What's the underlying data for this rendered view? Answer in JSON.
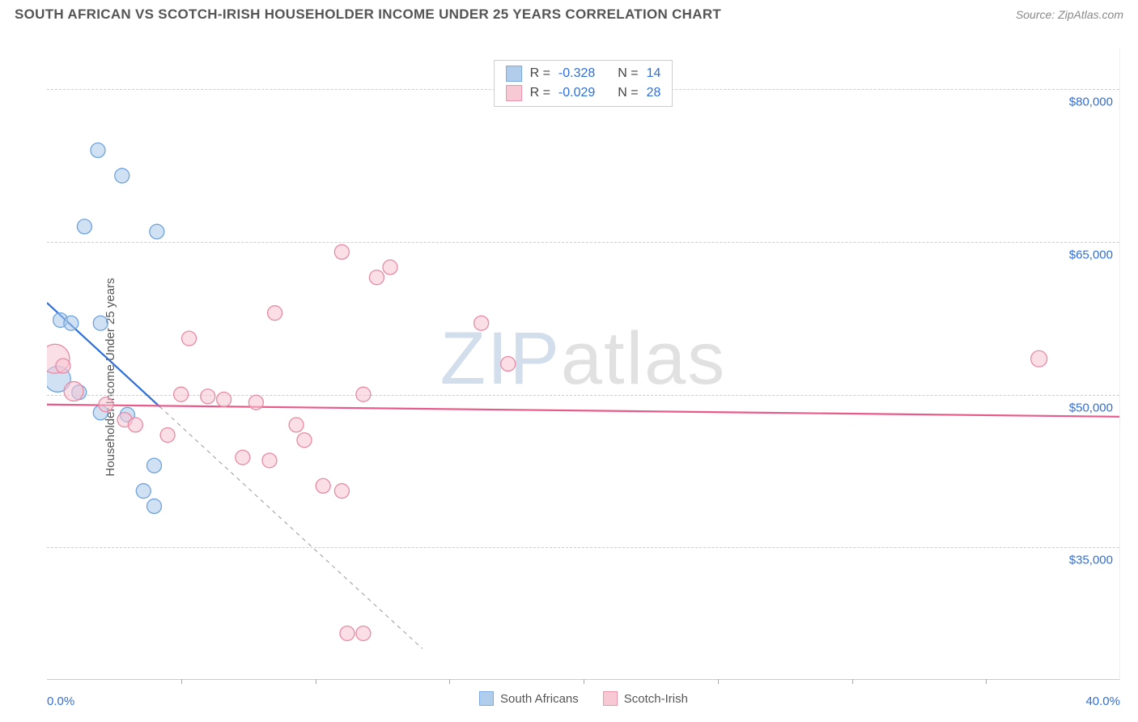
{
  "header": {
    "title": "SOUTH AFRICAN VS SCOTCH-IRISH HOUSEHOLDER INCOME UNDER 25 YEARS CORRELATION CHART",
    "source": "Source: ZipAtlas.com"
  },
  "chart": {
    "type": "scatter",
    "y_axis_title": "Householder Income Under 25 years",
    "background_color": "#ffffff",
    "grid_color": "#cccccc",
    "y_ticks": [
      {
        "value": 35000,
        "label": "$35,000"
      },
      {
        "value": 50000,
        "label": "$50,000"
      },
      {
        "value": 65000,
        "label": "$65,000"
      },
      {
        "value": 80000,
        "label": "$80,000"
      }
    ],
    "ylim": [
      22000,
      84000
    ],
    "xlim": [
      0,
      40
    ],
    "x_min_label": "0.0%",
    "x_max_label": "40.0%",
    "x_tick_step_pct": 5,
    "watermark": {
      "part1": "ZIP",
      "part2": "atlas"
    },
    "series": [
      {
        "name": "South Africans",
        "fill": "#a8c8ea",
        "stroke": "#6fa3dd",
        "fill_opacity": 0.55,
        "marker_r": 9,
        "trend": {
          "color": "#2f6fd8",
          "width": 2.2,
          "x1": 0,
          "y1": 59000,
          "x2": 4.2,
          "y2": 48800,
          "dash_extend_x": 14.0,
          "dash_extend_y": 25000
        },
        "points": [
          {
            "x": 1.9,
            "y": 74000,
            "r": 9
          },
          {
            "x": 2.8,
            "y": 71500,
            "r": 9
          },
          {
            "x": 1.4,
            "y": 66500,
            "r": 9
          },
          {
            "x": 4.1,
            "y": 66000,
            "r": 9
          },
          {
            "x": 0.5,
            "y": 57300,
            "r": 9
          },
          {
            "x": 0.9,
            "y": 57000,
            "r": 9
          },
          {
            "x": 2.0,
            "y": 57000,
            "r": 9
          },
          {
            "x": 0.4,
            "y": 51500,
            "r": 16
          },
          {
            "x": 1.2,
            "y": 50200,
            "r": 9
          },
          {
            "x": 3.0,
            "y": 48000,
            "r": 9
          },
          {
            "x": 2.0,
            "y": 48200,
            "r": 9
          },
          {
            "x": 4.0,
            "y": 43000,
            "r": 9
          },
          {
            "x": 3.6,
            "y": 40500,
            "r": 9
          },
          {
            "x": 4.0,
            "y": 39000,
            "r": 9
          }
        ]
      },
      {
        "name": "Scotch-Irish",
        "fill": "#f7c4d1",
        "stroke": "#e88aa5",
        "fill_opacity": 0.55,
        "marker_r": 9,
        "trend": {
          "color": "#e85a88",
          "width": 2.2,
          "x1": 0,
          "y1": 49000,
          "x2": 40,
          "y2": 47800
        },
        "points": [
          {
            "x": 0.3,
            "y": 53500,
            "r": 18
          },
          {
            "x": 0.6,
            "y": 52800,
            "r": 9
          },
          {
            "x": 1.0,
            "y": 50300,
            "r": 12
          },
          {
            "x": 2.2,
            "y": 49000,
            "r": 9
          },
          {
            "x": 2.9,
            "y": 47500,
            "r": 9
          },
          {
            "x": 3.3,
            "y": 47000,
            "r": 9
          },
          {
            "x": 4.5,
            "y": 46000,
            "r": 9
          },
          {
            "x": 5.3,
            "y": 55500,
            "r": 9
          },
          {
            "x": 5.0,
            "y": 50000,
            "r": 9
          },
          {
            "x": 6.0,
            "y": 49800,
            "r": 9
          },
          {
            "x": 6.6,
            "y": 49500,
            "r": 9
          },
          {
            "x": 7.3,
            "y": 43800,
            "r": 9
          },
          {
            "x": 7.8,
            "y": 49200,
            "r": 9
          },
          {
            "x": 8.3,
            "y": 43500,
            "r": 9
          },
          {
            "x": 8.5,
            "y": 58000,
            "r": 9
          },
          {
            "x": 9.3,
            "y": 47000,
            "r": 9
          },
          {
            "x": 9.6,
            "y": 45500,
            "r": 9
          },
          {
            "x": 10.3,
            "y": 41000,
            "r": 9
          },
          {
            "x": 11.0,
            "y": 64000,
            "r": 9
          },
          {
            "x": 11.0,
            "y": 40500,
            "r": 9
          },
          {
            "x": 11.8,
            "y": 50000,
            "r": 9
          },
          {
            "x": 12.3,
            "y": 61500,
            "r": 9
          },
          {
            "x": 12.8,
            "y": 62500,
            "r": 9
          },
          {
            "x": 11.2,
            "y": 26500,
            "r": 9
          },
          {
            "x": 11.8,
            "y": 26500,
            "r": 9
          },
          {
            "x": 16.2,
            "y": 57000,
            "r": 9
          },
          {
            "x": 17.2,
            "y": 53000,
            "r": 9
          },
          {
            "x": 37.0,
            "y": 53500,
            "r": 10
          }
        ]
      }
    ],
    "stats": [
      {
        "series_index": 0,
        "r_label": "R =",
        "r_value": "-0.328",
        "n_label": "N =",
        "n_value": "14"
      },
      {
        "series_index": 1,
        "r_label": "R =",
        "r_value": "-0.029",
        "n_label": "N =",
        "n_value": "28"
      }
    ]
  }
}
